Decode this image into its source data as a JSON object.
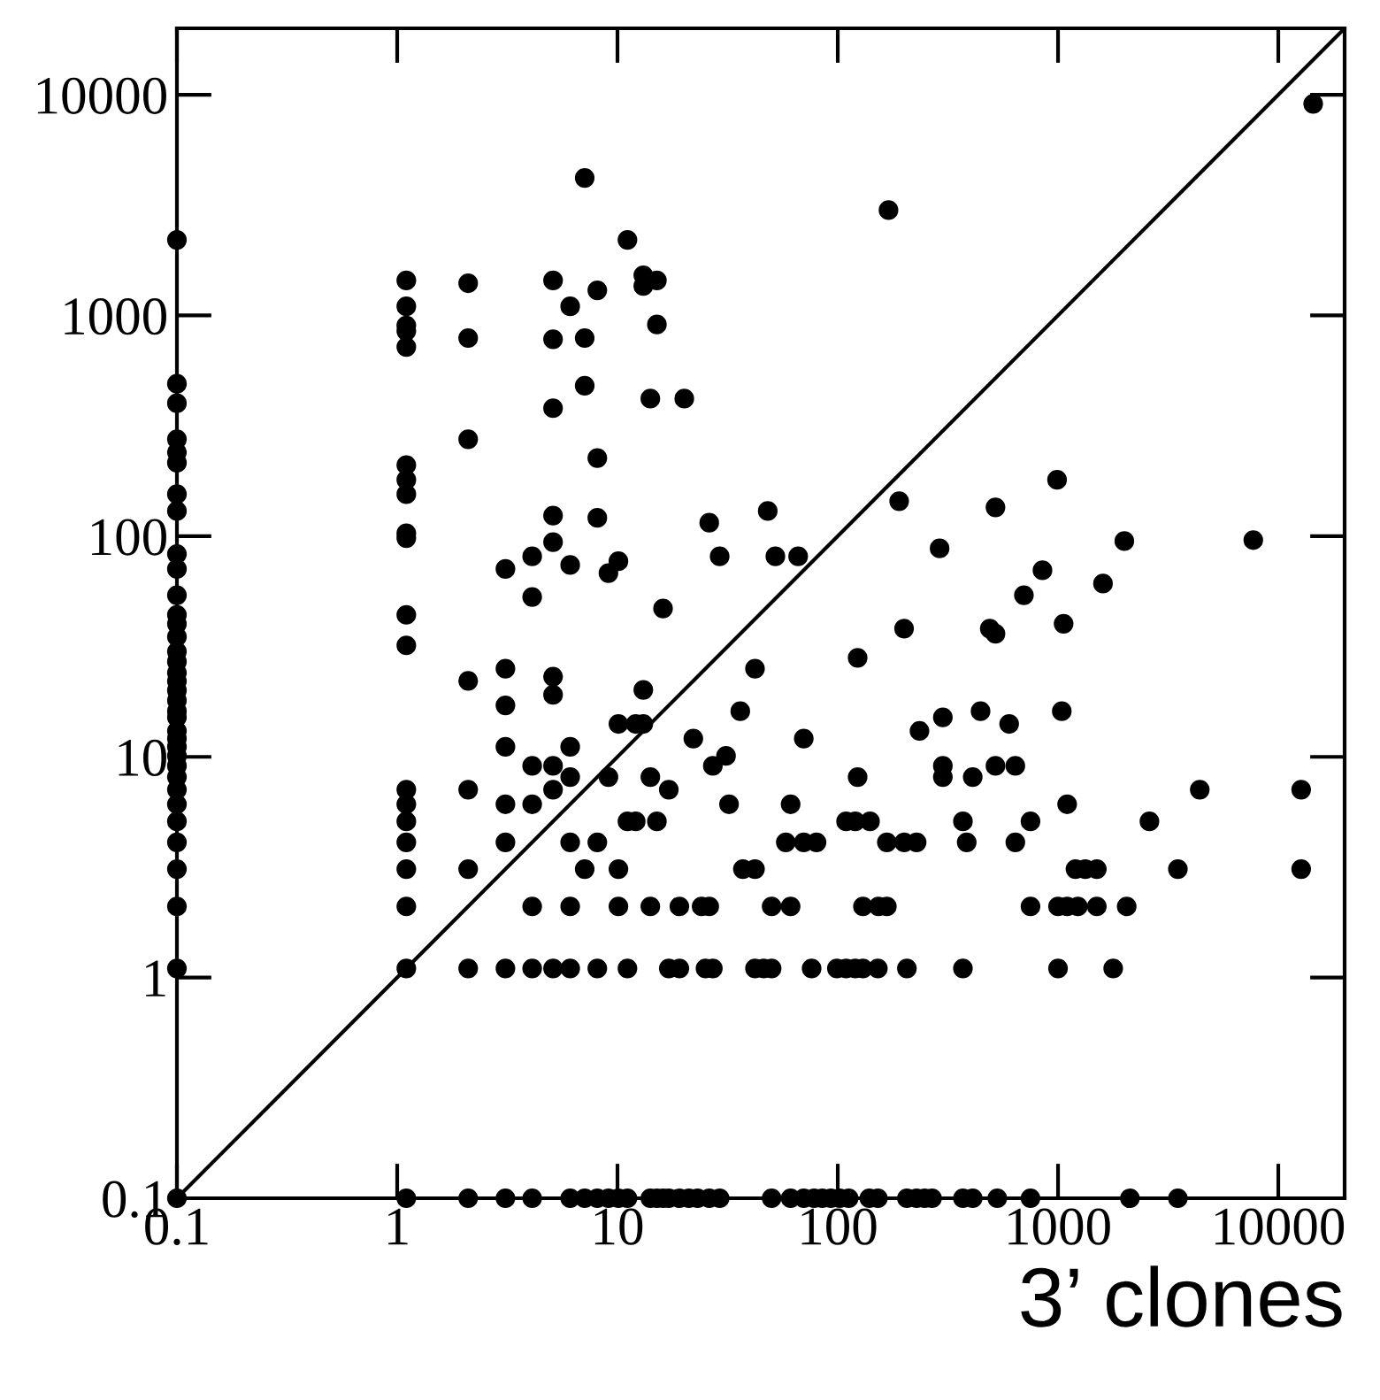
{
  "chart_data": {
    "type": "scatter",
    "xlabel": "3’ clones",
    "log": "xy",
    "xlim": [
      0.1,
      20000
    ],
    "ylim": [
      0.1,
      20000
    ],
    "xticks": [
      0.1,
      1,
      10,
      100,
      1000,
      10000
    ],
    "yticks": [
      0.1,
      1,
      10,
      100,
      1000,
      10000
    ],
    "grid": false,
    "marker": "circle",
    "series": [
      {
        "color": "#000000",
        "x": [
          0.1,
          0.1,
          0.1,
          0.1,
          0.1,
          0.1,
          0.1,
          0.1,
          0.1,
          0.1,
          0.1,
          0.1,
          0.1,
          0.1,
          0.1,
          0.1,
          0.1,
          0.1,
          0.1,
          0.1,
          0.1,
          0.1,
          0.1,
          0.1,
          0.1,
          0.1,
          0.1,
          0.1,
          0.1,
          0.1,
          0.1,
          0.1,
          0.1,
          0.1,
          0.1,
          0.1,
          1.1,
          1.1,
          1.1,
          1.1,
          1.1,
          1.1,
          1.1,
          1.1,
          1.1,
          1.1,
          1.1,
          1.1,
          1.1,
          1.1,
          1.1,
          1.1,
          1.1,
          1.1,
          1.1,
          1.1,
          2.1,
          2.1,
          2.1,
          2.1,
          2.1,
          2.1,
          2.1,
          2.1,
          3.1,
          3.1,
          3.1,
          3.1,
          3.1,
          3.1,
          3.1,
          3.1,
          4.1,
          4.1,
          4.1,
          4.1,
          4.1,
          4.1,
          4.1,
          5.1,
          5.1,
          5.1,
          5.1,
          5.1,
          5.1,
          5.1,
          5.1,
          5.1,
          5.1,
          6.1,
          6.1,
          6.1,
          6.1,
          6.1,
          6.1,
          6.1,
          6.1,
          7.1,
          7.1,
          7.1,
          7.1,
          7.1,
          8.1,
          8.1,
          8.1,
          8.1,
          8.1,
          8.1,
          9.1,
          9.1,
          9.1,
          10.1,
          10.1,
          10.1,
          10.1,
          10.1,
          11.1,
          11.1,
          11.1,
          11.1,
          12.1,
          12.1,
          13.1,
          13.1,
          13.1,
          13.1,
          14.1,
          14.1,
          14.1,
          14.1,
          15.1,
          15.1,
          15.1,
          15.1,
          16.1,
          16.1,
          17.1,
          17.1,
          17.1,
          19.1,
          19.1,
          19.1,
          20.1,
          22.1,
          21.1,
          23.1,
          24.1,
          25.1,
          26.1,
          26.1,
          26.1,
          27.1,
          27.1,
          29.1,
          29.1,
          31.1,
          32.1,
          36.1,
          37.1,
          42.1,
          42.1,
          42.1,
          46.1,
          48.1,
          50.1,
          50.1,
          50.1,
          52.1,
          58.1,
          61.1,
          61.1,
          61.1,
          66.1,
          70.1,
          70.1,
          70.1,
          76.1,
          78.1,
          80.1,
          85.1,
          93.1,
          102.1,
          112.1,
          99.1,
          109.1,
          120.1,
          130.1,
          109.1,
          120.1,
          140.1,
          123.1,
          123.1,
          130.1,
          153.1,
          167.1,
          139.1,
          152.1,
          152.1,
          167.1,
          200.1,
          228.1,
          170,
          190,
          200,
          206,
          206,
          228,
          248,
          268,
          235,
          290,
          300,
          300,
          300,
          370,
          370,
          370,
          385,
          410,
          410,
          445,
          490,
          520,
          520,
          520,
          530,
          600,
          640,
          640,
          700,
          750,
          750,
          750,
          850,
          990,
          1000,
          1000,
          1040,
          1060,
          1100,
          1100,
          1200,
          1230,
          1330,
          1500,
          1500,
          1600,
          1780,
          2000,
          2050,
          2120,
          2600,
          3500,
          3500,
          4400,
          7700,
          12700,
          12700,
          14400
        ],
        "values": [
          2200,
          490,
          400,
          275,
          240,
          215,
          155,
          130,
          83,
          71,
          54,
          44,
          40,
          35,
          30,
          27,
          24,
          22,
          20,
          18,
          16.1,
          15.1,
          13.1,
          12.1,
          11.1,
          10.1,
          9.1,
          8.1,
          7.1,
          6.1,
          5.1,
          4.1,
          3.1,
          2.1,
          1.1,
          0.1,
          1440,
          1100,
          900,
          850,
          720,
          210,
          180,
          155,
          103,
          98,
          44,
          32,
          7.1,
          6.1,
          5.1,
          4.1,
          3.1,
          2.1,
          1.1,
          0.1,
          1400,
          790,
          275,
          22.1,
          7.1,
          3.1,
          1.1,
          0.1,
          71,
          25.1,
          17.1,
          11.1,
          6.1,
          4.1,
          1.1,
          0.1,
          81,
          53,
          9.1,
          6.1,
          2.1,
          1.1,
          0.1,
          1440,
          780,
          380,
          124,
          94,
          23.1,
          19.1,
          9.1,
          7.1,
          1.1,
          1100,
          74,
          11.1,
          8.1,
          4.1,
          2.1,
          1.1,
          0.1,
          4200,
          790,
          480,
          3.1,
          0.1,
          1300,
          226,
          121,
          4.1,
          1.1,
          0.1,
          68,
          8.1,
          0.1,
          77,
          14.1,
          3.1,
          2.1,
          0.1,
          2200,
          5.1,
          1.1,
          0.1,
          5.1,
          14.1,
          14.1,
          20.1,
          1520,
          1360,
          420,
          8.1,
          2.1,
          0.1,
          1440,
          910,
          5.1,
          0.1,
          47,
          0.1,
          7.1,
          1.1,
          0.1,
          2.1,
          1.1,
          0.1,
          420,
          12.1,
          0.1,
          0.1,
          2.1,
          1.1,
          115,
          2.1,
          0.1,
          1.1,
          9.1,
          81,
          0.1,
          10.1,
          6.1,
          16.1,
          3.1,
          3.1,
          25.1,
          1.1,
          1.1,
          130,
          1.1,
          2.1,
          0.1,
          81,
          4.1,
          2.1,
          6.1,
          0.1,
          81,
          4.1,
          12.1,
          0.1,
          1.1,
          0.1,
          4.1,
          0.1,
          0.1,
          0.1,
          0.1,
          1.1,
          1.1,
          1.1,
          1.1,
          5.1,
          5.1,
          5.1,
          8.1,
          28.1,
          2.1,
          2.1,
          2.1,
          0.1,
          0.1,
          1.1,
          4.1,
          4.1,
          4.1,
          3000,
          144,
          38.1,
          1.1,
          0.1,
          0.1,
          0.1,
          0.1,
          13.1,
          88,
          15.1,
          9.1,
          8.1,
          5.1,
          1.1,
          0.1,
          4.1,
          8.1,
          0.1,
          16.1,
          38.1,
          36.1,
          135,
          9.1,
          0.1,
          14.1,
          9.1,
          4.1,
          54,
          5.1,
          2.1,
          0.1,
          70,
          180,
          1.1,
          2.1,
          16.1,
          40.1,
          6.1,
          2.1,
          3.1,
          2.1,
          3.1,
          3.1,
          2.1,
          61,
          1.1,
          95,
          2.1,
          0.1,
          5.1,
          3.1,
          0.1,
          7.1,
          96,
          7.1,
          3.1,
          9100
        ]
      },
      {
        "type": "line",
        "marker": "none",
        "color": "#000000",
        "x": [
          0.1,
          20000
        ],
        "values": [
          0.1,
          20000
        ]
      }
    ]
  }
}
